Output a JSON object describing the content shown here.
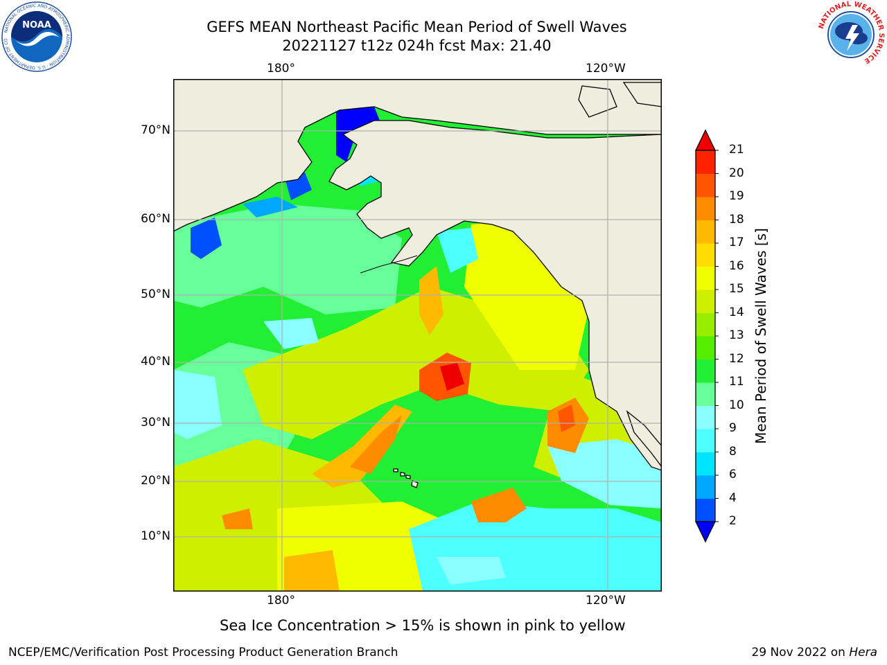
{
  "header": {
    "title_line1": "GEFS MEAN Northeast Pacific Mean Period of Swell Waves",
    "title_line2": "20221127 t12z 024h fcst   Max: 21.40"
  },
  "logos": {
    "noaa": "NOAA",
    "noaa_ring": "NATIONAL OCEANIC AND ATMOSPHERIC ADMINISTRATION · U.S. DEPARTMENT OF COMMERCE",
    "nws_ring": "NATIONAL WEATHER SERVICE"
  },
  "map": {
    "lon_labels": [
      "180°",
      "120°W"
    ],
    "lat_labels": [
      "70°N",
      "60°N",
      "50°N",
      "40°N",
      "30°N",
      "20°N",
      "10°N"
    ],
    "land_color": "#efedde",
    "ice_note": "Sea Ice Concentration > 15% is shown in pink to yellow"
  },
  "colorbar": {
    "label": "Mean Period of Swell Waves [s]",
    "ticks": [
      "2",
      "4",
      "6",
      "8",
      "9",
      "10",
      "11",
      "12",
      "13",
      "14",
      "15",
      "16",
      "17",
      "18",
      "19",
      "20",
      "21"
    ],
    "colors": [
      "#0050ff",
      "#00a8ff",
      "#00e5ff",
      "#4dffff",
      "#8affff",
      "#66ff99",
      "#22ee33",
      "#55ee00",
      "#99ee00",
      "#cef000",
      "#f0ff00",
      "#ffdd00",
      "#ffba00",
      "#ff8c00",
      "#ff5500",
      "#ff2200"
    ],
    "under_color": "#0000ff",
    "over_color": "#ee0000"
  },
  "footer": {
    "credit": "NCEP/EMC/Verification Post Processing Product Generation Branch",
    "date": "29 Nov 2022 on ",
    "machine": "Hera"
  }
}
